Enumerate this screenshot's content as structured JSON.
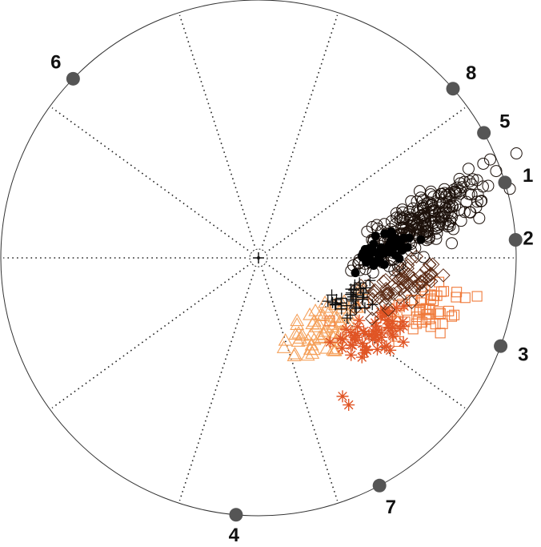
{
  "chart_data": {
    "type": "scatter",
    "projection": "radviz",
    "title": "",
    "xlabel": "",
    "ylabel": "",
    "grid": true,
    "legend": "none",
    "anchors": [
      {
        "label": "1",
        "angle_deg": 17
      },
      {
        "label": "2",
        "angle_deg": 4
      },
      {
        "label": "3",
        "angle_deg": -20
      },
      {
        "label": "4",
        "angle_deg": -95
      },
      {
        "label": "5",
        "angle_deg": 29
      },
      {
        "label": "6",
        "angle_deg": 136
      },
      {
        "label": "7",
        "angle_deg": -62
      },
      {
        "label": "8",
        "angle_deg": 41
      }
    ],
    "spoke_angles_deg": [
      0,
      36,
      72,
      108,
      144,
      180,
      216,
      252,
      288,
      324
    ],
    "marker_colors": {
      "open_circle": "#1c110b",
      "filled_dot": "#000000",
      "plus": "#111111",
      "diamond": "#5a2a14",
      "square": "#f07a3a",
      "asterisk": "#e05525",
      "triangle": "#f5a05a",
      "spoke": "#222222",
      "anchor": "#555555"
    },
    "series": [
      {
        "marker": "open_circle",
        "center": [
          0.64,
          0.14
        ],
        "spread": [
          0.12,
          0.05
        ],
        "count": 260,
        "tilt": 0.55
      },
      {
        "marker": "filled_dot",
        "center": [
          0.48,
          0.03
        ],
        "spread": [
          0.05,
          0.03
        ],
        "count": 50,
        "tilt": 0.3
      },
      {
        "marker": "plus",
        "center": [
          0.37,
          -0.15
        ],
        "spread": [
          0.04,
          0.05
        ],
        "count": 35,
        "tilt": 0.2
      },
      {
        "marker": "diamond",
        "center": [
          0.55,
          -0.11
        ],
        "spread": [
          0.07,
          0.04
        ],
        "count": 70,
        "tilt": 0.3
      },
      {
        "marker": "square",
        "center": [
          0.64,
          -0.2
        ],
        "spread": [
          0.09,
          0.06
        ],
        "count": 55,
        "tilt": 0.2
      },
      {
        "marker": "asterisk",
        "center": [
          0.45,
          -0.29
        ],
        "spread": [
          0.08,
          0.05
        ],
        "count": 60,
        "tilt": 0.3
      },
      {
        "marker": "triangle",
        "center": [
          0.27,
          -0.27
        ],
        "spread": [
          0.09,
          0.06
        ],
        "count": 70,
        "tilt": 0.45
      }
    ],
    "outliers": [
      {
        "marker": "asterisk",
        "x": 0.35,
        "y": -0.57
      }
    ]
  }
}
